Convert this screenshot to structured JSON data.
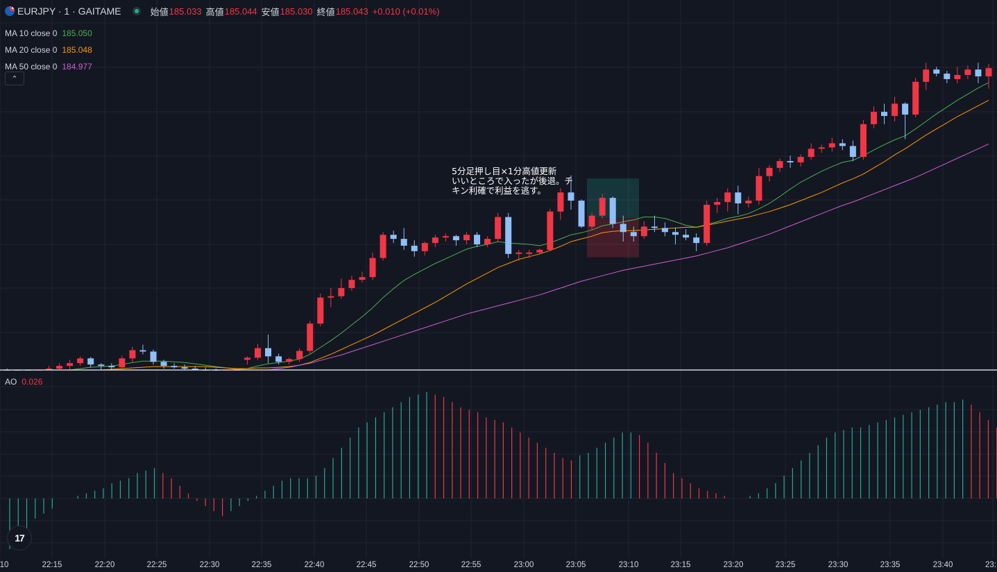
{
  "symbol": {
    "title": "EURJPY · 1 · GAITAME",
    "open_label": "始値",
    "open": "185.033",
    "high_label": "高値",
    "high": "185.044",
    "low_label": "安値",
    "low": "185.030",
    "close_label": "終値",
    "close": "185.043",
    "change": "+0.010 (+0.01%)"
  },
  "indicators": [
    {
      "name": "MA 10 close 0",
      "value": "185.050",
      "color": "#4caf50"
    },
    {
      "name": "MA 20 close 0",
      "value": "185.048",
      "color": "#ff9800"
    },
    {
      "name": "MA 50 close 0",
      "value": "184.977",
      "color": "#ce5fd3"
    }
  ],
  "collapse_icon": "chevron-up-icon",
  "annotation": "5分足押し目×1分高値更新\nいいところで入ったが後退。チ\nキン利確で利益を逃す。",
  "ao": {
    "label": "AO",
    "value": "0.026"
  },
  "time_axis": [
    "10",
    "22:15",
    "22:20",
    "22:25",
    "22:30",
    "22:35",
    "22:40",
    "22:45",
    "22:50",
    "22:55",
    "23:00",
    "23:05",
    "23:10",
    "23:15",
    "23:20",
    "23:25",
    "23:30",
    "23:35",
    "23:40",
    "23:"
  ],
  "colors": {
    "up": "#f23645",
    "down": "#90bff9",
    "ao_up": "#22ab94",
    "ao_down": "#f23645",
    "background": "#131722"
  },
  "chart_data": {
    "type": "candlestick",
    "candles": [
      {
        "o": 184.718,
        "h": 184.722,
        "l": 184.712,
        "c": 184.716
      },
      {
        "o": 184.716,
        "h": 184.724,
        "l": 184.71,
        "c": 184.718
      },
      {
        "o": 184.718,
        "h": 184.722,
        "l": 184.712,
        "c": 184.714
      },
      {
        "o": 184.714,
        "h": 184.718,
        "l": 184.706,
        "c": 184.71
      },
      {
        "o": 184.71,
        "h": 184.714,
        "l": 184.702,
        "c": 184.706
      },
      {
        "o": 184.706,
        "h": 184.716,
        "l": 184.7,
        "c": 184.714
      },
      {
        "o": 184.714,
        "h": 184.726,
        "l": 184.71,
        "c": 184.722
      },
      {
        "o": 184.722,
        "h": 184.73,
        "l": 184.716,
        "c": 184.726
      },
      {
        "o": 184.726,
        "h": 184.735,
        "l": 184.72,
        "c": 184.73
      },
      {
        "o": 184.73,
        "h": 184.74,
        "l": 184.726,
        "c": 184.737
      },
      {
        "o": 184.737,
        "h": 184.739,
        "l": 184.724,
        "c": 184.728
      },
      {
        "o": 184.728,
        "h": 184.73,
        "l": 184.72,
        "c": 184.726
      },
      {
        "o": 184.726,
        "h": 184.73,
        "l": 184.72,
        "c": 184.724
      },
      {
        "o": 184.724,
        "h": 184.741,
        "l": 184.72,
        "c": 184.737
      },
      {
        "o": 184.737,
        "h": 184.754,
        "l": 184.731,
        "c": 184.749
      },
      {
        "o": 184.749,
        "h": 184.757,
        "l": 184.743,
        "c": 184.747
      },
      {
        "o": 184.747,
        "h": 184.75,
        "l": 184.728,
        "c": 184.732
      },
      {
        "o": 184.732,
        "h": 184.735,
        "l": 184.722,
        "c": 184.726
      },
      {
        "o": 184.726,
        "h": 184.73,
        "l": 184.722,
        "c": 184.724
      },
      {
        "o": 184.724,
        "h": 184.728,
        "l": 184.72,
        "c": 184.722
      },
      {
        "o": 184.722,
        "h": 184.726,
        "l": 184.718,
        "c": 184.72
      },
      {
        "o": 184.72,
        "h": 184.724,
        "l": 184.716,
        "c": 184.718
      },
      {
        "o": 184.718,
        "h": 184.722,
        "l": 184.714,
        "c": 184.716
      },
      {
        "o": 184.716,
        "h": 184.72,
        "l": 184.712,
        "c": 184.718
      },
      {
        "o": 184.718,
        "h": 184.722,
        "l": 184.714,
        "c": 184.72
      },
      {
        "o": 184.735,
        "h": 184.74,
        "l": 184.728,
        "c": 184.738
      },
      {
        "o": 184.738,
        "h": 184.758,
        "l": 184.735,
        "c": 184.752
      },
      {
        "o": 184.752,
        "h": 184.772,
        "l": 184.73,
        "c": 184.74
      },
      {
        "o": 184.74,
        "h": 184.744,
        "l": 184.728,
        "c": 184.732
      },
      {
        "o": 184.732,
        "h": 184.738,
        "l": 184.728,
        "c": 184.736
      },
      {
        "o": 184.736,
        "h": 184.752,
        "l": 184.732,
        "c": 184.748
      },
      {
        "o": 184.748,
        "h": 184.792,
        "l": 184.744,
        "c": 184.788
      },
      {
        "o": 184.788,
        "h": 184.832,
        "l": 184.784,
        "c": 184.826
      },
      {
        "o": 184.826,
        "h": 184.84,
        "l": 184.812,
        "c": 184.828
      },
      {
        "o": 184.828,
        "h": 184.854,
        "l": 184.824,
        "c": 184.84
      },
      {
        "o": 184.84,
        "h": 184.858,
        "l": 184.836,
        "c": 184.852
      },
      {
        "o": 184.852,
        "h": 184.864,
        "l": 184.848,
        "c": 184.856
      },
      {
        "o": 184.856,
        "h": 184.892,
        "l": 184.852,
        "c": 184.884
      },
      {
        "o": 184.884,
        "h": 184.922,
        "l": 184.88,
        "c": 184.918
      },
      {
        "o": 184.918,
        "h": 184.924,
        "l": 184.906,
        "c": 184.912
      },
      {
        "o": 184.912,
        "h": 184.928,
        "l": 184.896,
        "c": 184.902
      },
      {
        "o": 184.902,
        "h": 184.91,
        "l": 184.886,
        "c": 184.894
      },
      {
        "o": 184.894,
        "h": 184.908,
        "l": 184.888,
        "c": 184.906
      },
      {
        "o": 184.906,
        "h": 184.918,
        "l": 184.9,
        "c": 184.914
      },
      {
        "o": 184.914,
        "h": 184.92,
        "l": 184.908,
        "c": 184.916
      },
      {
        "o": 184.916,
        "h": 184.918,
        "l": 184.902,
        "c": 184.91
      },
      {
        "o": 184.91,
        "h": 184.922,
        "l": 184.904,
        "c": 184.918
      },
      {
        "o": 184.918,
        "h": 184.922,
        "l": 184.9,
        "c": 184.904
      },
      {
        "o": 184.904,
        "h": 184.916,
        "l": 184.9,
        "c": 184.912
      },
      {
        "o": 184.912,
        "h": 184.95,
        "l": 184.908,
        "c": 184.944
      },
      {
        "o": 184.944,
        "h": 184.95,
        "l": 184.884,
        "c": 184.89
      },
      {
        "o": 184.89,
        "h": 184.896,
        "l": 184.88,
        "c": 184.892
      },
      {
        "o": 184.89,
        "h": 184.896,
        "l": 184.884,
        "c": 184.892
      },
      {
        "o": 184.892,
        "h": 184.898,
        "l": 184.89,
        "c": 184.896
      },
      {
        "o": 184.896,
        "h": 184.956,
        "l": 184.894,
        "c": 184.952
      },
      {
        "o": 184.952,
        "h": 184.986,
        "l": 184.94,
        "c": 184.98
      },
      {
        "o": 184.98,
        "h": 185.005,
        "l": 184.955,
        "c": 184.968
      },
      {
        "o": 184.968,
        "h": 184.97,
        "l": 184.928,
        "c": 184.93
      },
      {
        "o": 184.93,
        "h": 184.95,
        "l": 184.926,
        "c": 184.946
      },
      {
        "o": 184.946,
        "h": 184.978,
        "l": 184.942,
        "c": 184.972
      },
      {
        "o": 184.972,
        "h": 184.974,
        "l": 184.928,
        "c": 184.934
      },
      {
        "o": 184.934,
        "h": 184.946,
        "l": 184.908,
        "c": 184.922
      },
      {
        "o": 184.922,
        "h": 184.93,
        "l": 184.908,
        "c": 184.916
      },
      {
        "o": 184.916,
        "h": 184.938,
        "l": 184.912,
        "c": 184.93
      },
      {
        "o": 184.93,
        "h": 184.946,
        "l": 184.922,
        "c": 184.928
      },
      {
        "o": 184.928,
        "h": 184.936,
        "l": 184.916,
        "c": 184.922
      },
      {
        "o": 184.922,
        "h": 184.928,
        "l": 184.904,
        "c": 184.918
      },
      {
        "o": 184.918,
        "h": 184.926,
        "l": 184.91,
        "c": 184.914
      },
      {
        "o": 184.914,
        "h": 184.92,
        "l": 184.894,
        "c": 184.906
      },
      {
        "o": 184.906,
        "h": 184.968,
        "l": 184.902,
        "c": 184.962
      },
      {
        "o": 184.962,
        "h": 184.972,
        "l": 184.95,
        "c": 184.966
      },
      {
        "o": 184.966,
        "h": 184.986,
        "l": 184.952,
        "c": 184.98
      },
      {
        "o": 184.98,
        "h": 184.99,
        "l": 184.948,
        "c": 184.964
      },
      {
        "o": 184.964,
        "h": 184.974,
        "l": 184.958,
        "c": 184.968
      },
      {
        "o": 184.968,
        "h": 185.016,
        "l": 184.962,
        "c": 185.004
      },
      {
        "o": 185.004,
        "h": 185.02,
        "l": 184.996,
        "c": 185.016
      },
      {
        "o": 185.016,
        "h": 185.03,
        "l": 185.01,
        "c": 185.026
      },
      {
        "o": 185.026,
        "h": 185.034,
        "l": 185.016,
        "c": 185.024
      },
      {
        "o": 185.024,
        "h": 185.036,
        "l": 185.018,
        "c": 185.032
      },
      {
        "o": 185.032,
        "h": 185.052,
        "l": 185.028,
        "c": 185.044
      },
      {
        "o": 185.044,
        "h": 185.05,
        "l": 185.038,
        "c": 185.046
      },
      {
        "o": 185.046,
        "h": 185.06,
        "l": 185.04,
        "c": 185.052
      },
      {
        "o": 185.052,
        "h": 185.058,
        "l": 185.042,
        "c": 185.048
      },
      {
        "o": 185.048,
        "h": 185.056,
        "l": 185.026,
        "c": 185.032
      },
      {
        "o": 185.032,
        "h": 185.086,
        "l": 185.028,
        "c": 185.08
      },
      {
        "o": 185.08,
        "h": 185.106,
        "l": 185.074,
        "c": 185.098
      },
      {
        "o": 185.098,
        "h": 185.11,
        "l": 185.08,
        "c": 185.092
      },
      {
        "o": 185.092,
        "h": 185.12,
        "l": 185.084,
        "c": 185.11
      },
      {
        "o": 185.11,
        "h": 185.112,
        "l": 185.058,
        "c": 185.094
      },
      {
        "o": 185.094,
        "h": 185.148,
        "l": 185.09,
        "c": 185.142
      },
      {
        "o": 185.142,
        "h": 185.17,
        "l": 185.13,
        "c": 185.16
      },
      {
        "o": 185.16,
        "h": 185.164,
        "l": 185.15,
        "c": 185.154
      },
      {
        "o": 185.154,
        "h": 185.158,
        "l": 185.14,
        "c": 185.146
      },
      {
        "o": 185.146,
        "h": 185.164,
        "l": 185.14,
        "c": 185.152
      },
      {
        "o": 185.152,
        "h": 185.166,
        "l": 185.146,
        "c": 185.16
      },
      {
        "o": 185.16,
        "h": 185.17,
        "l": 185.14,
        "c": 185.15
      },
      {
        "o": 185.15,
        "h": 185.168,
        "l": 185.132,
        "c": 185.162
      }
    ],
    "ma10": [
      184.716,
      184.717,
      184.716,
      184.715,
      184.714,
      184.714,
      184.716,
      184.718,
      184.72,
      184.722,
      184.724,
      184.725,
      184.726,
      184.728,
      184.731,
      184.733,
      184.733,
      184.733,
      184.732,
      184.731,
      184.729,
      184.727,
      184.725,
      184.723,
      184.721,
      184.722,
      184.726,
      184.729,
      184.731,
      184.733,
      184.736,
      184.743,
      184.753,
      184.763,
      184.774,
      184.786,
      184.798,
      184.811,
      184.826,
      184.839,
      184.851,
      184.86,
      184.868,
      184.876,
      184.883,
      184.89,
      184.897,
      184.901,
      184.904,
      184.908,
      184.906,
      184.905,
      184.904,
      184.902,
      184.906,
      184.912,
      184.918,
      184.921,
      184.925,
      184.931,
      184.934,
      184.937,
      184.94,
      184.944,
      184.944,
      184.942,
      184.937,
      184.932,
      184.929,
      184.933,
      184.937,
      184.942,
      184.945,
      184.949,
      184.956,
      184.964,
      184.974,
      184.985,
      184.995,
      185.003,
      185.011,
      185.018,
      185.024,
      185.027,
      185.034,
      185.042,
      185.05,
      185.057,
      185.063,
      185.073,
      185.084,
      185.095,
      185.105,
      185.115,
      185.124,
      185.133,
      185.141
    ],
    "ma20": [
      184.716,
      184.716,
      184.716,
      184.716,
      184.715,
      184.715,
      184.716,
      184.716,
      184.717,
      184.718,
      184.719,
      184.72,
      184.721,
      184.722,
      184.723,
      184.724,
      184.725,
      184.725,
      184.725,
      184.725,
      184.725,
      184.725,
      184.724,
      184.723,
      184.722,
      184.722,
      184.723,
      184.723,
      184.724,
      184.725,
      184.727,
      184.731,
      184.737,
      184.743,
      184.75,
      184.757,
      184.764,
      184.771,
      184.779,
      184.787,
      184.795,
      184.803,
      184.811,
      184.819,
      184.828,
      184.837,
      184.846,
      184.854,
      184.862,
      184.87,
      184.876,
      184.882,
      184.886,
      184.89,
      184.895,
      184.901,
      184.908,
      184.912,
      184.916,
      184.921,
      184.923,
      184.924,
      184.924,
      184.925,
      184.926,
      184.927,
      184.928,
      184.929,
      184.929,
      184.932,
      184.935,
      184.938,
      184.941,
      184.944,
      184.948,
      184.952,
      184.957,
      184.962,
      184.968,
      184.974,
      184.98,
      184.987,
      184.994,
      185.0,
      185.007,
      185.016,
      185.025,
      185.035,
      185.044,
      185.054,
      185.064,
      185.073,
      185.082,
      185.091,
      185.099,
      185.107,
      185.115
    ],
    "ma50": [
      184.69,
      184.691,
      184.692,
      184.693,
      184.694,
      184.695,
      184.696,
      184.697,
      184.698,
      184.699,
      184.7,
      184.701,
      184.702,
      184.703,
      184.704,
      184.705,
      184.706,
      184.707,
      184.708,
      184.709,
      184.71,
      184.711,
      184.712,
      184.713,
      184.714,
      184.716,
      184.718,
      184.72,
      184.722,
      184.724,
      184.727,
      184.73,
      184.734,
      184.738,
      184.742,
      184.747,
      184.752,
      184.757,
      184.762,
      184.767,
      184.772,
      184.777,
      184.782,
      184.787,
      184.792,
      184.797,
      184.802,
      184.806,
      184.81,
      184.814,
      184.818,
      184.822,
      184.826,
      184.83,
      184.835,
      184.84,
      184.845,
      184.85,
      184.854,
      184.858,
      184.862,
      184.866,
      184.869,
      184.872,
      184.875,
      184.878,
      184.881,
      184.884,
      184.887,
      184.891,
      184.895,
      184.899,
      184.904,
      184.909,
      184.914,
      184.919,
      184.925,
      184.931,
      184.937,
      184.943,
      184.949,
      184.955,
      184.961,
      184.966,
      184.972,
      184.978,
      184.984,
      184.99,
      184.996,
      185.002,
      185.009,
      185.016,
      185.023,
      185.03,
      185.037,
      185.044,
      185.051
    ],
    "ao": [
      -0.02,
      -0.016,
      -0.012,
      -0.008,
      -0.006,
      -0.004,
      0.0,
      0.0,
      0.001,
      0.002,
      0.003,
      0.004,
      0.006,
      0.007,
      0.008,
      0.01,
      0.011,
      0.012,
      0.01,
      0.008,
      0.005,
      0.002,
      -0.001,
      -0.003,
      -0.005,
      -0.007,
      -0.005,
      -0.003,
      -0.001,
      0.001,
      0.003,
      0.005,
      0.007,
      0.008,
      0.008,
      0.008,
      0.009,
      0.012,
      0.016,
      0.02,
      0.024,
      0.028,
      0.03,
      0.032,
      0.034,
      0.036,
      0.038,
      0.04,
      0.041,
      0.042,
      0.041,
      0.04,
      0.038,
      0.036,
      0.035,
      0.034,
      0.032,
      0.031,
      0.03,
      0.028,
      0.026,
      0.024,
      0.022,
      0.02,
      0.018,
      0.016,
      0.015,
      0.017,
      0.018,
      0.02,
      0.022,
      0.024,
      0.026,
      0.026,
      0.025,
      0.022,
      0.018,
      0.014,
      0.01,
      0.008,
      0.006,
      0.004,
      0.003,
      0.002,
      0.001,
      0.0,
      0.0,
      0.001,
      0.002,
      0.004,
      0.006,
      0.009,
      0.012,
      0.015,
      0.018,
      0.021,
      0.024,
      0.026,
      0.027,
      0.028,
      0.028,
      0.029,
      0.03,
      0.031,
      0.032,
      0.033,
      0.034,
      0.035,
      0.036,
      0.037,
      0.038,
      0.038,
      0.039,
      0.037,
      0.034,
      0.031,
      0.028
    ],
    "trade_box": {
      "entry": 184.942,
      "take_profit": 185.0,
      "stop": 184.885
    }
  }
}
